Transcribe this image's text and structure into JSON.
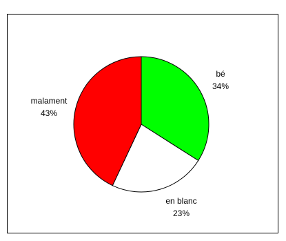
{
  "chart_data": {
    "type": "pie",
    "slices": [
      {
        "label": "bé",
        "value": 34,
        "value_label": "34%",
        "color": "#00ff00"
      },
      {
        "label": "en blanc",
        "value": 23,
        "value_label": "23%",
        "color": "#ffffff"
      },
      {
        "label": "malament",
        "value": 43,
        "value_label": "43%",
        "color": "#ff0000"
      }
    ],
    "start_angle": "12 o'clock",
    "direction": "clockwise",
    "slice_outline": "#000000",
    "legend": "none"
  }
}
